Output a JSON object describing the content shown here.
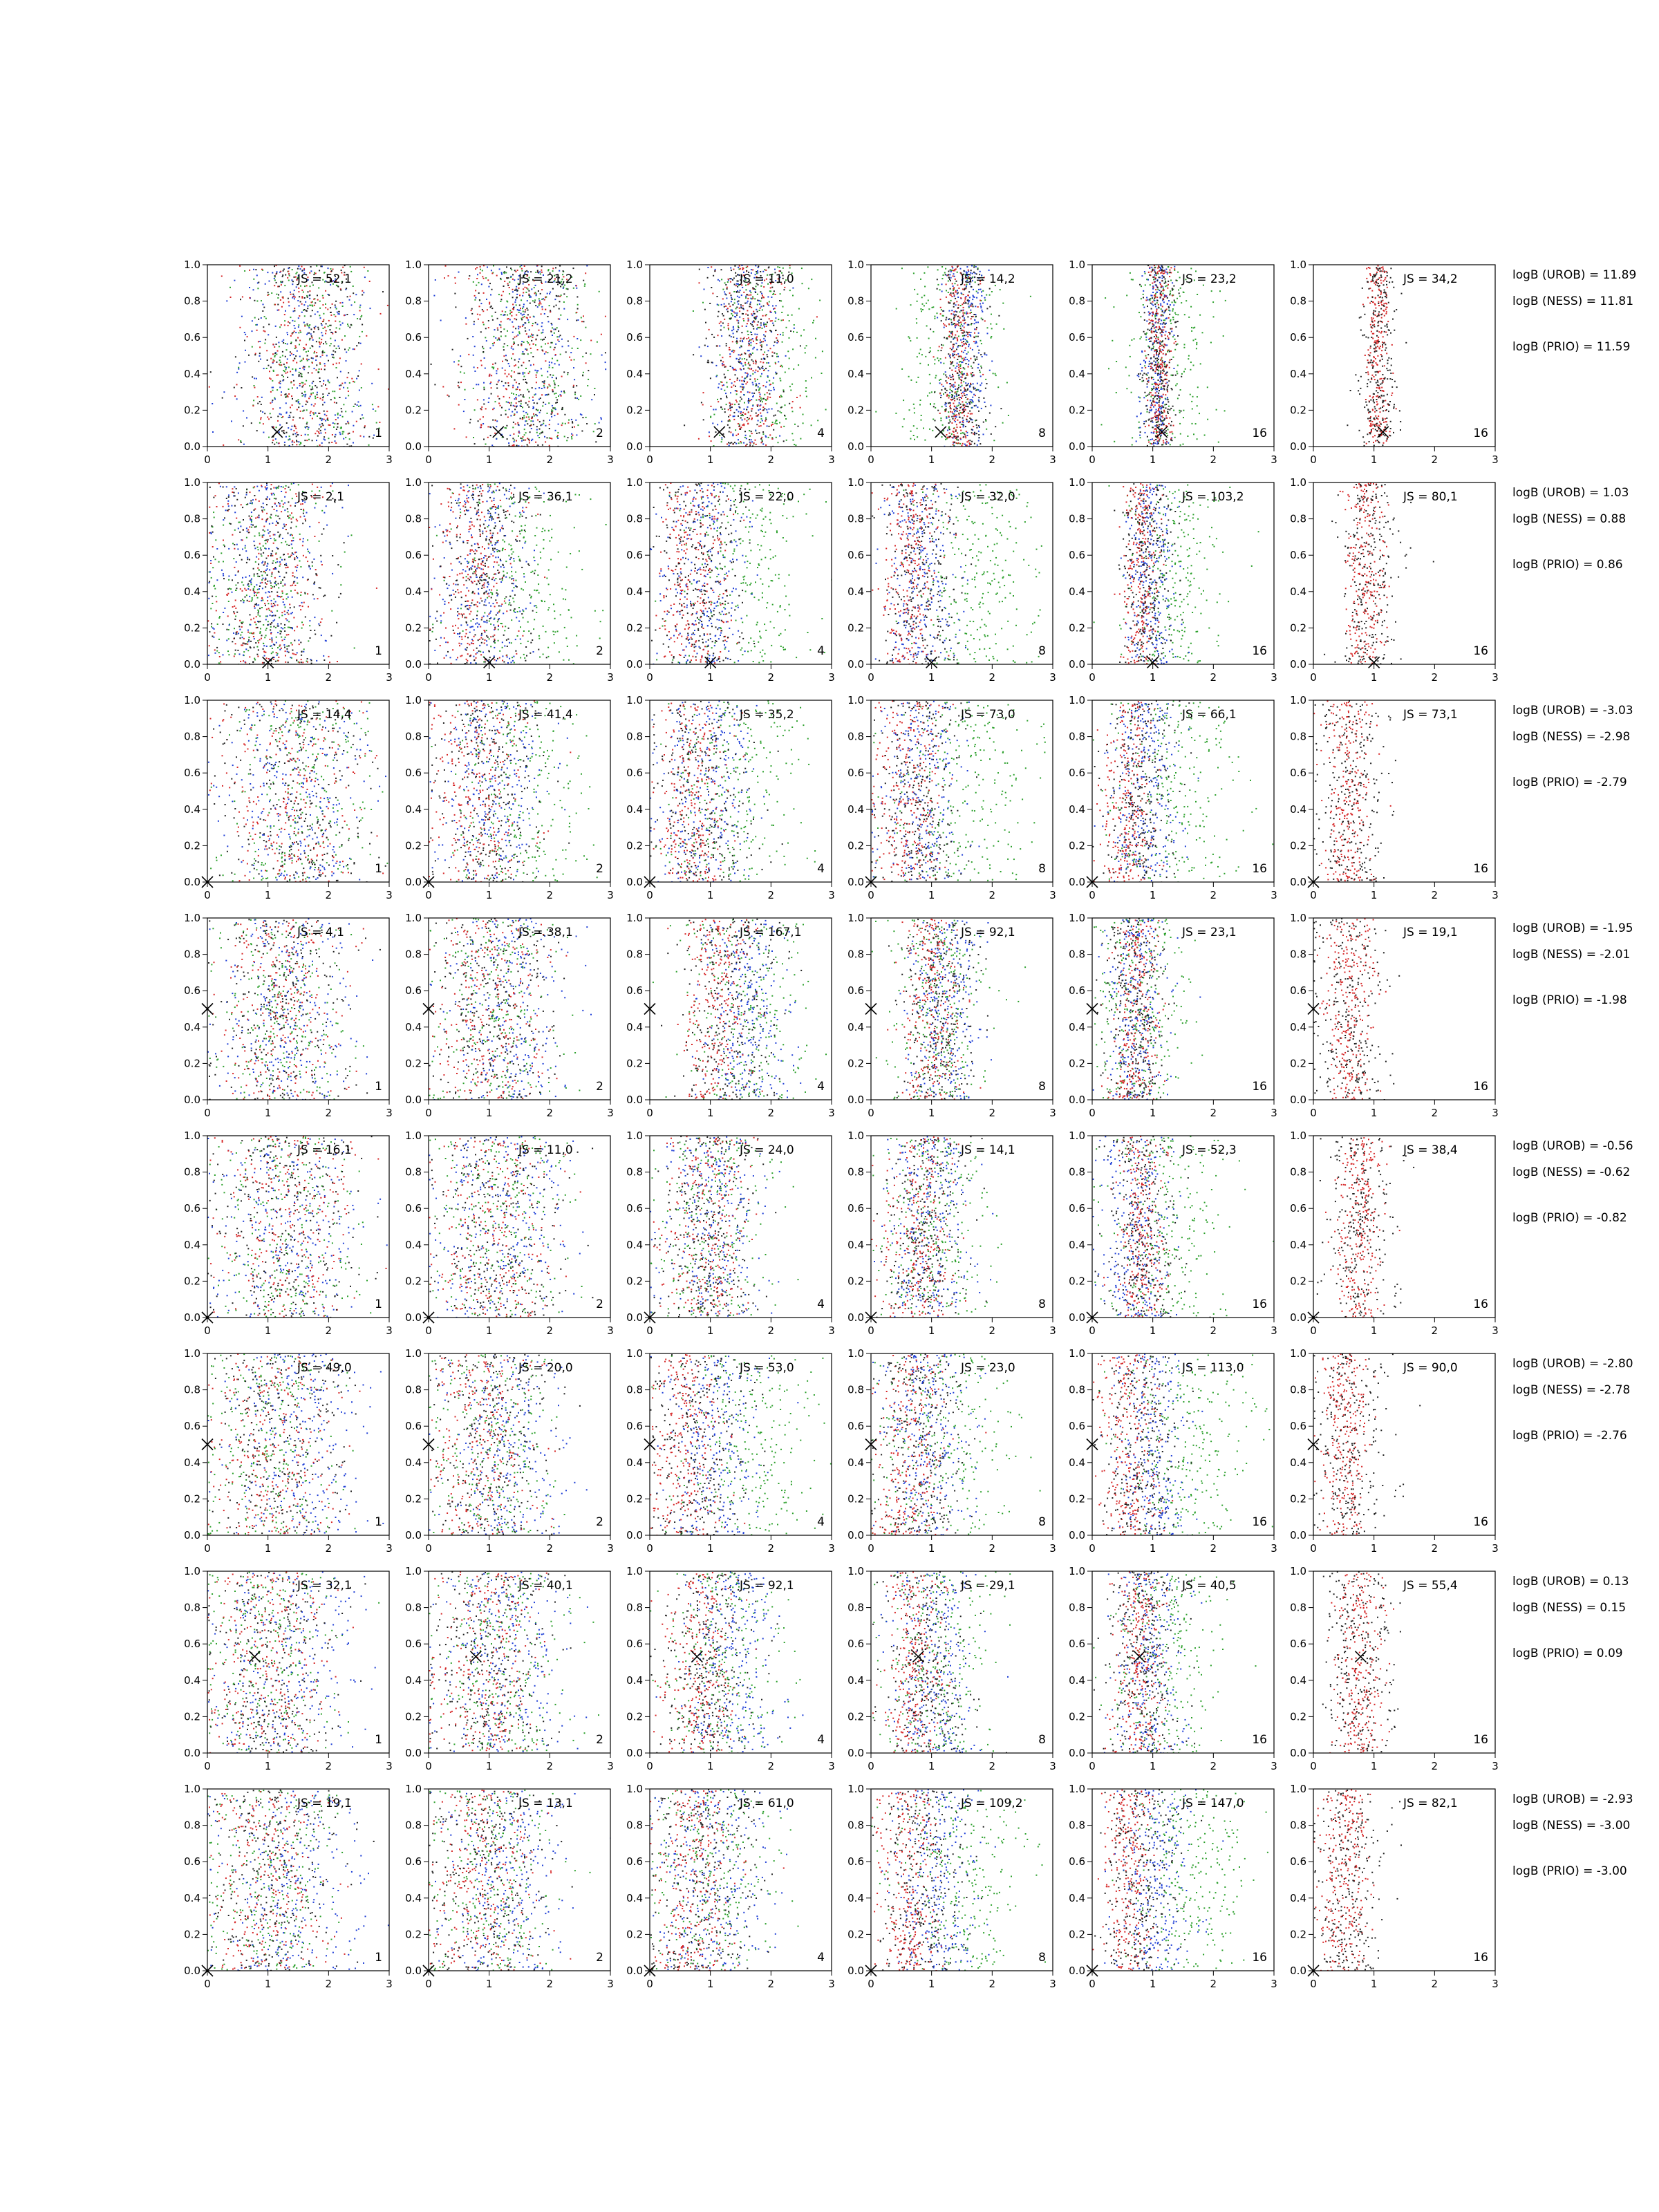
{
  "chart_data": {
    "type": "scatter",
    "description_axes": {
      "xlim": [
        0,
        3
      ],
      "ylim": [
        0,
        1
      ],
      "xticks": [
        "0",
        "1",
        "2",
        "3"
      ],
      "yticks": [
        "0.0",
        "0.2",
        "0.4",
        "0.6",
        "0.8",
        "1.0"
      ]
    },
    "series_colors": {
      "green": "#2ca02c",
      "blue": "#1f3fd6",
      "red": "#d62728",
      "black": "#222222"
    },
    "column_counts": [
      "1",
      "2",
      "4",
      "8",
      "16",
      "16"
    ],
    "rows": [
      {
        "js": [
          "JS = 52,1",
          "JS = 21,2",
          "JS = 11,0",
          "JS = 14,2",
          "JS = 23,2",
          "JS = 34,2"
        ],
        "logb": [
          "logB (UROB) = 11.89",
          "logB (NESS) = 11.81",
          "logB (PRIO) = 11.59"
        ],
        "marker": [
          1.15,
          0.08
        ],
        "centers": [
          [
            1.7,
            1.6,
            1.5,
            1.6
          ],
          [
            1.7,
            1.6,
            1.55,
            1.6
          ],
          [
            1.9,
            1.6,
            1.6,
            1.6
          ],
          [
            1.3,
            1.55,
            1.45,
            1.5
          ],
          [
            1.2,
            1.05,
            1.1,
            1.1
          ],
          [
            1.0,
            1.0,
            1.05,
            1.05
          ]
        ],
        "spreads": [
          [
            0.55,
            0.55,
            0.55,
            0.55
          ],
          [
            0.5,
            0.5,
            0.5,
            0.5
          ],
          [
            0.45,
            0.3,
            0.3,
            0.35
          ],
          [
            0.4,
            0.18,
            0.15,
            0.2
          ],
          [
            0.35,
            0.13,
            0.1,
            0.15
          ],
          [
            0.3,
            0.12,
            0.1,
            0.15
          ]
        ]
      },
      {
        "js": [
          "JS = 2,1",
          "JS = 36,1",
          "JS = 22,0",
          "JS = 32,0",
          "JS = 103,2",
          "JS = 80,1"
        ],
        "logb": [
          "logB (UROB) = 1.03",
          "logB (NESS) = 0.88",
          "logB (PRIO) = 0.86"
        ],
        "marker": [
          1.0,
          0.01
        ],
        "centers": [
          [
            1.0,
            1.0,
            1.0,
            1.0
          ],
          [
            1.5,
            0.9,
            0.75,
            0.9
          ],
          [
            1.6,
            0.9,
            0.7,
            0.85
          ],
          [
            1.7,
            0.8,
            0.65,
            0.8
          ],
          [
            1.3,
            0.95,
            0.8,
            0.9
          ],
          [
            0.9,
            0.9,
            0.85,
            0.9
          ]
        ],
        "spreads": [
          [
            0.5,
            0.5,
            0.5,
            0.5
          ],
          [
            0.55,
            0.4,
            0.35,
            0.4
          ],
          [
            0.55,
            0.35,
            0.3,
            0.35
          ],
          [
            0.5,
            0.3,
            0.25,
            0.3
          ],
          [
            0.4,
            0.2,
            0.15,
            0.2
          ],
          [
            0.35,
            0.2,
            0.15,
            0.25
          ]
        ]
      },
      {
        "js": [
          "JS = 14,4",
          "JS = 41,4",
          "JS = 35,2",
          "JS = 73,0",
          "JS = 66,1",
          "JS = 73,1"
        ],
        "logb": [
          "logB (UROB) = -3.03",
          "logB (NESS) = -2.98",
          "logB (PRIO) = -2.79"
        ],
        "marker": [
          0.0,
          0.0
        ],
        "centers": [
          [
            1.5,
            1.5,
            1.4,
            1.5
          ],
          [
            1.5,
            1.0,
            0.8,
            1.0
          ],
          [
            1.4,
            0.9,
            0.7,
            0.9
          ],
          [
            1.5,
            0.8,
            0.6,
            0.8
          ],
          [
            1.3,
            0.8,
            0.6,
            0.8
          ],
          [
            0.8,
            0.6,
            0.55,
            0.6
          ]
        ],
        "spreads": [
          [
            0.6,
            0.6,
            0.6,
            0.6
          ],
          [
            0.55,
            0.45,
            0.4,
            0.45
          ],
          [
            0.55,
            0.4,
            0.3,
            0.4
          ],
          [
            0.6,
            0.35,
            0.3,
            0.35
          ],
          [
            0.55,
            0.3,
            0.2,
            0.3
          ],
          [
            0.45,
            0.3,
            0.2,
            0.3
          ]
        ]
      },
      {
        "js": [
          "JS = 4,1",
          "JS = 38,1",
          "JS = 167,1",
          "JS = 92,1",
          "JS = 23,1",
          "JS = 19,1"
        ],
        "logb": [
          "logB (UROB) = -1.95",
          "logB (NESS) = -2.01",
          "logB (PRIO) = -1.98"
        ],
        "marker": [
          0.0,
          0.5
        ],
        "centers": [
          [
            1.2,
            1.3,
            1.2,
            1.2
          ],
          [
            1.1,
            1.3,
            1.0,
            1.1
          ],
          [
            1.5,
            1.6,
            1.1,
            1.3
          ],
          [
            1.1,
            1.2,
            1.0,
            1.1
          ],
          [
            0.8,
            0.7,
            0.7,
            0.7
          ],
          [
            0.7,
            0.6,
            0.6,
            0.6
          ]
        ],
        "spreads": [
          [
            0.55,
            0.55,
            0.55,
            0.55
          ],
          [
            0.5,
            0.5,
            0.45,
            0.5
          ],
          [
            0.5,
            0.35,
            0.3,
            0.4
          ],
          [
            0.4,
            0.3,
            0.25,
            0.3
          ],
          [
            0.35,
            0.25,
            0.2,
            0.25
          ],
          [
            0.35,
            0.25,
            0.2,
            0.3
          ]
        ]
      },
      {
        "js": [
          "JS = 16,1",
          "JS = 11,0",
          "JS = 24,0",
          "JS = 14,1",
          "JS = 52,3",
          "JS = 38,4"
        ],
        "logb": [
          "logB (UROB) = -0.56",
          "logB (NESS) = -0.62",
          "logB (PRIO) = -0.82"
        ],
        "marker": [
          0.0,
          0.0
        ],
        "centers": [
          [
            1.3,
            1.3,
            1.3,
            1.3
          ],
          [
            1.2,
            1.2,
            1.1,
            1.2
          ],
          [
            1.0,
            1.0,
            0.9,
            1.0
          ],
          [
            1.0,
            0.9,
            0.8,
            0.9
          ],
          [
            1.2,
            0.7,
            0.8,
            0.8
          ],
          [
            0.8,
            0.8,
            0.75,
            0.75
          ]
        ],
        "spreads": [
          [
            0.6,
            0.6,
            0.6,
            0.6
          ],
          [
            0.55,
            0.55,
            0.5,
            0.55
          ],
          [
            0.45,
            0.4,
            0.35,
            0.4
          ],
          [
            0.45,
            0.35,
            0.3,
            0.35
          ],
          [
            0.5,
            0.3,
            0.2,
            0.3
          ],
          [
            0.35,
            0.25,
            0.2,
            0.3
          ]
        ]
      },
      {
        "js": [
          "JS = 49,0",
          "JS = 20,0",
          "JS = 53,0",
          "JS = 23,0",
          "JS = 113,0",
          "JS = 90,0"
        ],
        "logb": [
          "logB (UROB) = -2.80",
          "logB (NESS) = -2.78",
          "logB (PRIO) = -2.76"
        ],
        "marker": [
          0.0,
          0.5
        ],
        "centers": [
          [
            1.0,
            1.5,
            1.1,
            1.2
          ],
          [
            1.0,
            1.2,
            0.9,
            1.0
          ],
          [
            1.6,
            1.0,
            0.6,
            0.8
          ],
          [
            1.2,
            0.9,
            0.6,
            0.8
          ],
          [
            1.6,
            1.0,
            0.6,
            0.8
          ],
          [
            0.9,
            0.7,
            0.5,
            0.6
          ]
        ],
        "spreads": [
          [
            0.55,
            0.6,
            0.5,
            0.55
          ],
          [
            0.5,
            0.5,
            0.45,
            0.5
          ],
          [
            0.6,
            0.4,
            0.3,
            0.4
          ],
          [
            0.55,
            0.35,
            0.3,
            0.35
          ],
          [
            0.55,
            0.3,
            0.25,
            0.3
          ],
          [
            0.4,
            0.25,
            0.2,
            0.3
          ]
        ]
      },
      {
        "js": [
          "JS = 32,1",
          "JS = 40,1",
          "JS = 92,1",
          "JS = 29,1",
          "JS = 40,5",
          "JS = 55,4"
        ],
        "logb": [
          "logB (UROB) = 0.13",
          "logB (NESS) = 0.15",
          "logB (PRIO) = 0.09"
        ],
        "marker": [
          0.78,
          0.53
        ],
        "centers": [
          [
            1.0,
            1.3,
            1.0,
            1.1
          ],
          [
            1.2,
            1.2,
            0.9,
            1.0
          ],
          [
            1.2,
            1.3,
            0.8,
            1.0
          ],
          [
            1.1,
            1.0,
            0.7,
            0.9
          ],
          [
            1.2,
            0.9,
            0.75,
            0.85
          ],
          [
            0.9,
            0.8,
            0.75,
            0.75
          ]
        ],
        "spreads": [
          [
            0.55,
            0.6,
            0.5,
            0.55
          ],
          [
            0.5,
            0.5,
            0.45,
            0.5
          ],
          [
            0.5,
            0.4,
            0.3,
            0.4
          ],
          [
            0.45,
            0.35,
            0.25,
            0.35
          ],
          [
            0.45,
            0.3,
            0.2,
            0.3
          ],
          [
            0.35,
            0.25,
            0.2,
            0.3
          ]
        ]
      },
      {
        "js": [
          "JS = 19,1",
          "JS = 13,1",
          "JS = 61,0",
          "JS = 109,2",
          "JS = 147,0",
          "JS = 82,1"
        ],
        "logb": [
          "logB (UROB) = -2.93",
          "logB (NESS) = -3.00",
          "logB (PRIO) = -3.00"
        ],
        "marker": [
          0.0,
          0.0
        ],
        "centers": [
          [
            1.0,
            1.3,
            1.0,
            1.1
          ],
          [
            1.0,
            1.2,
            0.9,
            1.0
          ],
          [
            1.0,
            1.0,
            0.7,
            0.85
          ],
          [
            1.5,
            1.1,
            0.6,
            0.85
          ],
          [
            1.6,
            1.0,
            0.6,
            0.8
          ],
          [
            0.8,
            0.7,
            0.5,
            0.6
          ]
        ],
        "spreads": [
          [
            0.55,
            0.6,
            0.5,
            0.55
          ],
          [
            0.5,
            0.5,
            0.45,
            0.5
          ],
          [
            0.5,
            0.45,
            0.35,
            0.45
          ],
          [
            0.55,
            0.35,
            0.25,
            0.35
          ],
          [
            0.5,
            0.3,
            0.2,
            0.3
          ],
          [
            0.4,
            0.25,
            0.2,
            0.3
          ]
        ]
      }
    ]
  }
}
